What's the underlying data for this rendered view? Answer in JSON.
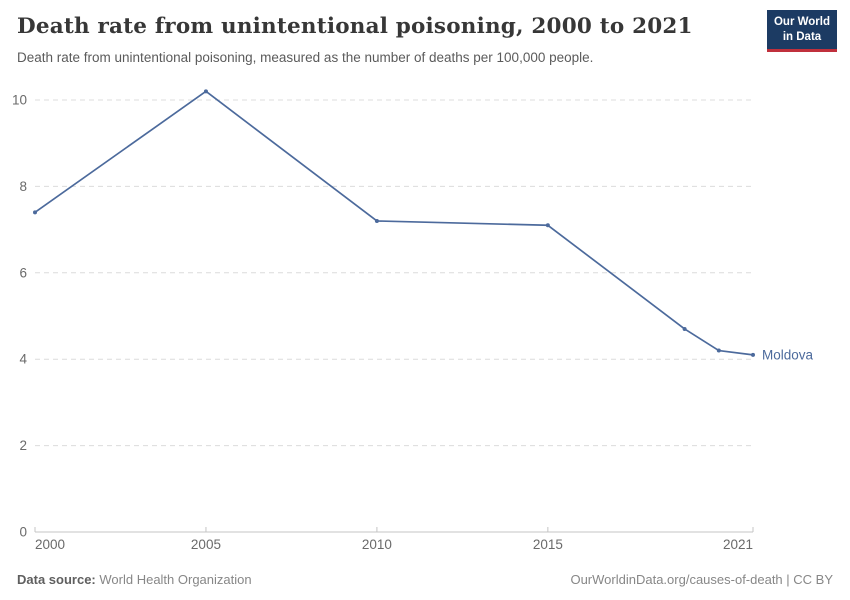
{
  "header": {
    "title": "Death rate from unintentional poisoning, 2000 to 2021",
    "subtitle": "Death rate from unintentional poisoning, measured as the number of deaths per 100,000 people.",
    "logo": {
      "line1": "Our World",
      "line2": "in Data"
    }
  },
  "chart_data": {
    "type": "line",
    "title": "Death rate from unintentional poisoning, 2000 to 2021",
    "x": [
      2000,
      2005,
      2010,
      2015,
      2019,
      2020,
      2021
    ],
    "series": [
      {
        "name": "Moldova",
        "color": "#4c6a9c",
        "values": [
          7.4,
          10.2,
          7.2,
          7.1,
          4.7,
          4.2,
          4.1
        ]
      }
    ],
    "xlabel": "",
    "ylabel": "",
    "xlim": [
      2000,
      2021
    ],
    "ylim": [
      0,
      10
    ],
    "xticks": [
      2000,
      2005,
      2010,
      2015,
      2021
    ],
    "yticks": [
      0,
      2,
      4,
      6,
      8,
      10
    ],
    "grid": true,
    "legend": "end-of-line-label"
  },
  "footer": {
    "source_label": "Data source:",
    "source_value": "World Health Organization",
    "credit": "OurWorldinData.org/causes-of-death | CC BY"
  },
  "colors": {
    "line": "#4c6a9c",
    "grid": "#dcdcdc",
    "axis": "#c4c4c4",
    "tick_label": "#6a6a6a",
    "logo_bg": "#1c3b63",
    "logo_accent": "#c0303c"
  }
}
